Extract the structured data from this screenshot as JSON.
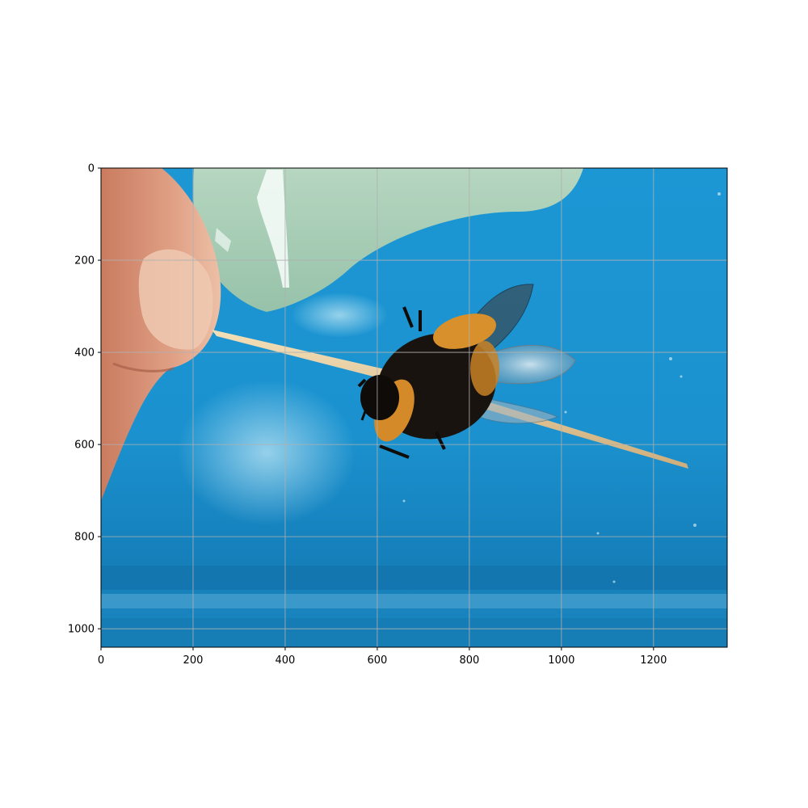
{
  "image": {
    "subject": "bumblebee",
    "dominant_colors": {
      "background_blue": "#1e9bd6",
      "deep_blue": "#0f6fa8",
      "finger_skin": "#d9967a",
      "translucent_lid": "#a9cdb2",
      "toothpick": "#e8cfa3",
      "bee_black": "#151210",
      "bee_orange": "#d98f2a"
    }
  },
  "axes": {
    "x_range": [
      0,
      1360
    ],
    "y_range": [
      1040,
      0
    ],
    "x_ticks": [
      0,
      200,
      400,
      600,
      800,
      1000,
      1200
    ],
    "y_ticks": [
      0,
      200,
      400,
      600,
      800,
      1000
    ],
    "x_tick_labels": [
      "0",
      "200",
      "400",
      "600",
      "800",
      "1000",
      "1200"
    ],
    "y_tick_labels": [
      "0",
      "200",
      "400",
      "600",
      "800",
      "1000"
    ],
    "grid": true
  }
}
